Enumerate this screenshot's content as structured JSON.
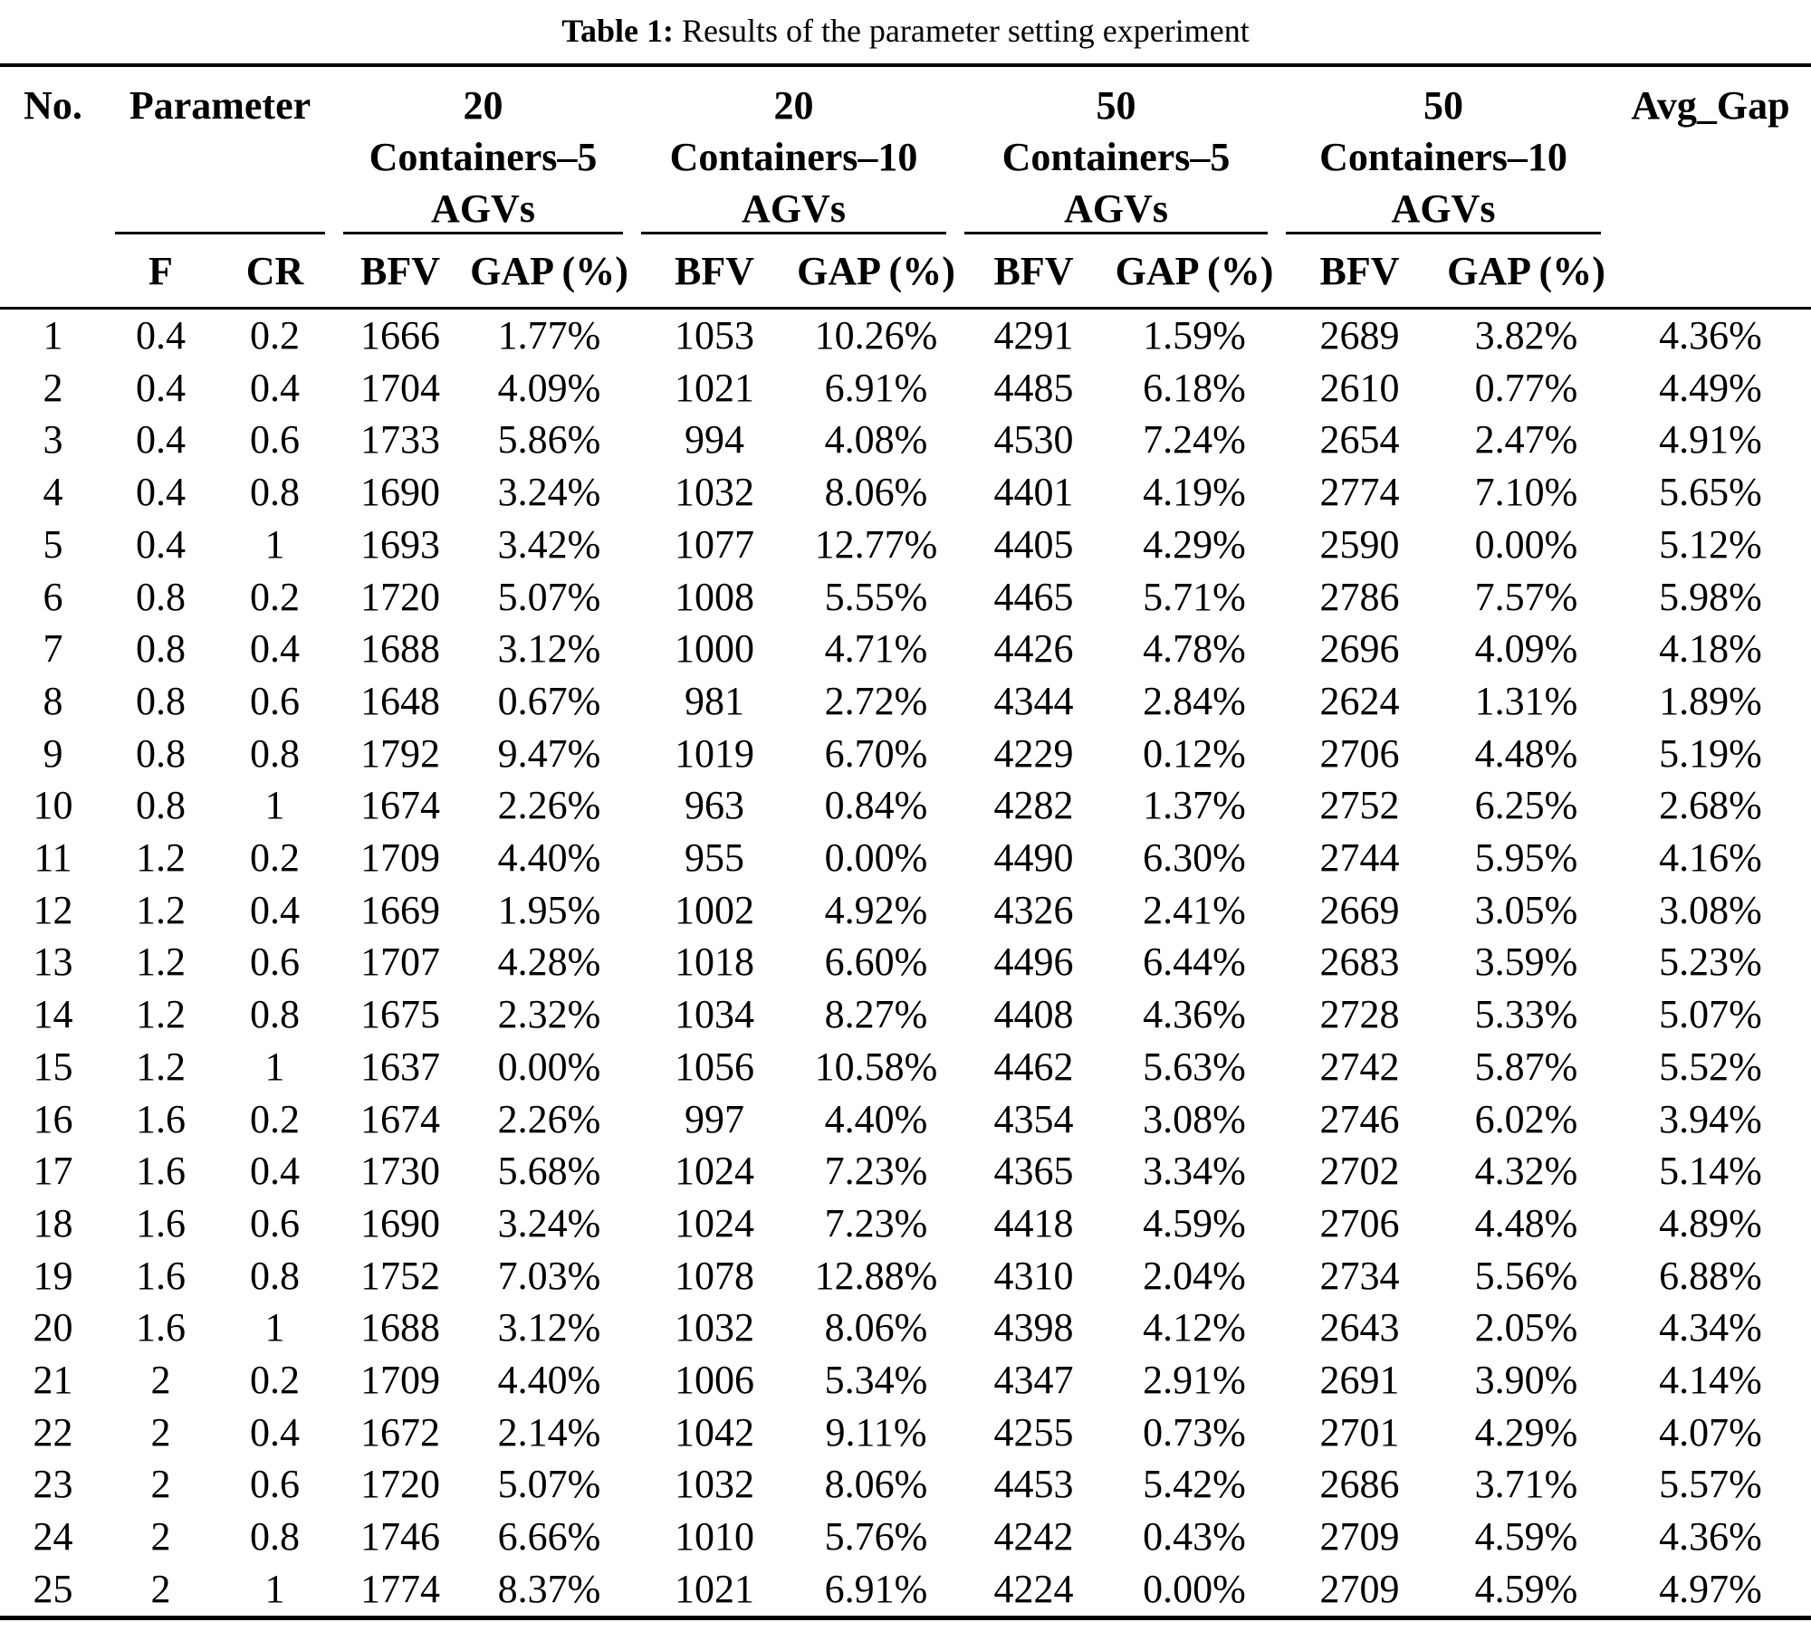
{
  "title": {
    "prefix": "Table 1:",
    "text": "Results of the parameter setting experiment"
  },
  "colors": {
    "text": "#000000",
    "background": "#ffffff",
    "rule": "#000000"
  },
  "table": {
    "col_groups": [
      {
        "label": "No."
      },
      {
        "label": "Parameter"
      },
      {
        "label": "20\nContainers–5\nAGVs"
      },
      {
        "label": "20\nContainers–10\nAGVs"
      },
      {
        "label": "50\nContainers–5\nAGVs"
      },
      {
        "label": "50\nContainers–10\nAGVs"
      },
      {
        "label": "Avg_Gap"
      }
    ],
    "sub_headers": [
      "F",
      "CR",
      "BFV",
      "GAP (%)",
      "BFV",
      "GAP (%)",
      "BFV",
      "GAP (%)",
      "BFV",
      "GAP (%)"
    ],
    "rows": [
      [
        "1",
        "0.4",
        "0.2",
        "1666",
        "1.77%",
        "1053",
        "10.26%",
        "4291",
        "1.59%",
        "2689",
        "3.82%",
        "4.36%"
      ],
      [
        "2",
        "0.4",
        "0.4",
        "1704",
        "4.09%",
        "1021",
        "6.91%",
        "4485",
        "6.18%",
        "2610",
        "0.77%",
        "4.49%"
      ],
      [
        "3",
        "0.4",
        "0.6",
        "1733",
        "5.86%",
        "994",
        "4.08%",
        "4530",
        "7.24%",
        "2654",
        "2.47%",
        "4.91%"
      ],
      [
        "4",
        "0.4",
        "0.8",
        "1690",
        "3.24%",
        "1032",
        "8.06%",
        "4401",
        "4.19%",
        "2774",
        "7.10%",
        "5.65%"
      ],
      [
        "5",
        "0.4",
        "1",
        "1693",
        "3.42%",
        "1077",
        "12.77%",
        "4405",
        "4.29%",
        "2590",
        "0.00%",
        "5.12%"
      ],
      [
        "6",
        "0.8",
        "0.2",
        "1720",
        "5.07%",
        "1008",
        "5.55%",
        "4465",
        "5.71%",
        "2786",
        "7.57%",
        "5.98%"
      ],
      [
        "7",
        "0.8",
        "0.4",
        "1688",
        "3.12%",
        "1000",
        "4.71%",
        "4426",
        "4.78%",
        "2696",
        "4.09%",
        "4.18%"
      ],
      [
        "8",
        "0.8",
        "0.6",
        "1648",
        "0.67%",
        "981",
        "2.72%",
        "4344",
        "2.84%",
        "2624",
        "1.31%",
        "1.89%"
      ],
      [
        "9",
        "0.8",
        "0.8",
        "1792",
        "9.47%",
        "1019",
        "6.70%",
        "4229",
        "0.12%",
        "2706",
        "4.48%",
        "5.19%"
      ],
      [
        "10",
        "0.8",
        "1",
        "1674",
        "2.26%",
        "963",
        "0.84%",
        "4282",
        "1.37%",
        "2752",
        "6.25%",
        "2.68%"
      ],
      [
        "11",
        "1.2",
        "0.2",
        "1709",
        "4.40%",
        "955",
        "0.00%",
        "4490",
        "6.30%",
        "2744",
        "5.95%",
        "4.16%"
      ],
      [
        "12",
        "1.2",
        "0.4",
        "1669",
        "1.95%",
        "1002",
        "4.92%",
        "4326",
        "2.41%",
        "2669",
        "3.05%",
        "3.08%"
      ],
      [
        "13",
        "1.2",
        "0.6",
        "1707",
        "4.28%",
        "1018",
        "6.60%",
        "4496",
        "6.44%",
        "2683",
        "3.59%",
        "5.23%"
      ],
      [
        "14",
        "1.2",
        "0.8",
        "1675",
        "2.32%",
        "1034",
        "8.27%",
        "4408",
        "4.36%",
        "2728",
        "5.33%",
        "5.07%"
      ],
      [
        "15",
        "1.2",
        "1",
        "1637",
        "0.00%",
        "1056",
        "10.58%",
        "4462",
        "5.63%",
        "2742",
        "5.87%",
        "5.52%"
      ],
      [
        "16",
        "1.6",
        "0.2",
        "1674",
        "2.26%",
        "997",
        "4.40%",
        "4354",
        "3.08%",
        "2746",
        "6.02%",
        "3.94%"
      ],
      [
        "17",
        "1.6",
        "0.4",
        "1730",
        "5.68%",
        "1024",
        "7.23%",
        "4365",
        "3.34%",
        "2702",
        "4.32%",
        "5.14%"
      ],
      [
        "18",
        "1.6",
        "0.6",
        "1690",
        "3.24%",
        "1024",
        "7.23%",
        "4418",
        "4.59%",
        "2706",
        "4.48%",
        "4.89%"
      ],
      [
        "19",
        "1.6",
        "0.8",
        "1752",
        "7.03%",
        "1078",
        "12.88%",
        "4310",
        "2.04%",
        "2734",
        "5.56%",
        "6.88%"
      ],
      [
        "20",
        "1.6",
        "1",
        "1688",
        "3.12%",
        "1032",
        "8.06%",
        "4398",
        "4.12%",
        "2643",
        "2.05%",
        "4.34%"
      ],
      [
        "21",
        "2",
        "0.2",
        "1709",
        "4.40%",
        "1006",
        "5.34%",
        "4347",
        "2.91%",
        "2691",
        "3.90%",
        "4.14%"
      ],
      [
        "22",
        "2",
        "0.4",
        "1672",
        "2.14%",
        "1042",
        "9.11%",
        "4255",
        "0.73%",
        "2701",
        "4.29%",
        "4.07%"
      ],
      [
        "23",
        "2",
        "0.6",
        "1720",
        "5.07%",
        "1032",
        "8.06%",
        "4453",
        "5.42%",
        "2686",
        "3.71%",
        "5.57%"
      ],
      [
        "24",
        "2",
        "0.8",
        "1746",
        "6.66%",
        "1010",
        "5.76%",
        "4242",
        "0.43%",
        "2709",
        "4.59%",
        "4.36%"
      ],
      [
        "25",
        "2",
        "1",
        "1774",
        "8.37%",
        "1021",
        "6.91%",
        "4224",
        "0.00%",
        "2709",
        "4.59%",
        "4.97%"
      ]
    ]
  }
}
